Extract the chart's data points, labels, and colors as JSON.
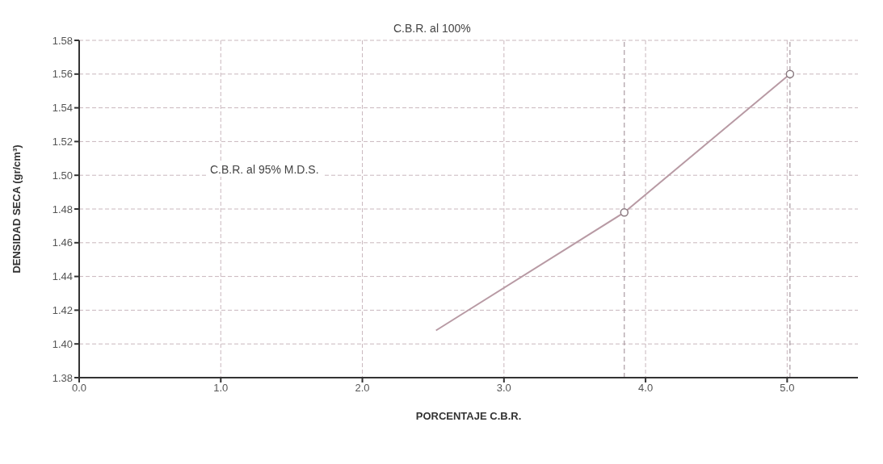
{
  "chart_data": {
    "type": "line",
    "xlabel": "PORCENTAJE C.B.R.",
    "ylabel": "DENSIDAD SECA (gr/cm³)",
    "annotations": [
      "C.B.R. al 100%",
      "C.B.R. al 95% M.D.S."
    ],
    "series": [
      {
        "color": "#b89aa4",
        "x": [
          2.52,
          3.85,
          5.02
        ],
        "values": [
          1.408,
          1.478,
          1.56
        ],
        "marker": "none"
      },
      {
        "type": "scatter",
        "color": "#8a7a80",
        "x": [
          3.85,
          5.02
        ],
        "values": [
          1.478,
          1.56
        ],
        "marker": "circle"
      }
    ],
    "xlim": [
      0,
      5.5
    ],
    "xticks": [
      {
        "value": 0,
        "label": "0.0"
      },
      {
        "value": 1,
        "label": "1.0"
      },
      {
        "value": 2,
        "label": "2.0"
      },
      {
        "value": 3,
        "label": "3.0"
      },
      {
        "value": 4,
        "label": "4.0"
      },
      {
        "value": 5,
        "label": "5.0"
      }
    ],
    "ylim": [
      1.38,
      1.58
    ],
    "yticks": [
      1.38,
      {
        "value": 1.4,
        "label": "1.40"
      },
      1.42,
      1.44,
      1.46,
      1.48,
      {
        "value": 1.5,
        "label": "1.50"
      },
      1.52,
      1.54,
      1.56,
      1.58
    ],
    "ref_lines": [
      {
        "axis": "x",
        "value": 3.85,
        "color": "#9a8890",
        "line_style": "dashed"
      },
      {
        "axis": "x",
        "value": 5.02,
        "color": "#9a8890",
        "line_style": "dashed"
      }
    ],
    "grid": true
  }
}
